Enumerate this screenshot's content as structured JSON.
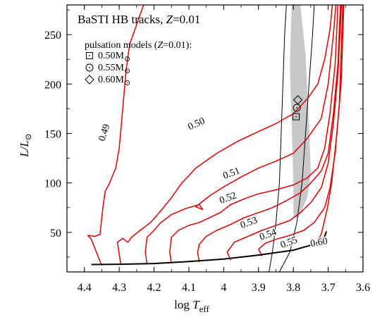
{
  "chart_data": {
    "type": "line",
    "title_main": "BaSTI HB tracks, ",
    "title_z": "Z",
    "title_tail": "=0.01",
    "xlabel_main": "log ",
    "xlabel_sym": "T",
    "xlabel_sub": "eff",
    "ylabel_main": "L/L",
    "ylabel_sub": "⊙",
    "xlim": [
      4.45,
      3.6
    ],
    "ylim": [
      10,
      280
    ],
    "xticks": [
      {
        "v": 4.4,
        "label": "4.4"
      },
      {
        "v": 4.3,
        "label": "4.3"
      },
      {
        "v": 4.2,
        "label": "4.2"
      },
      {
        "v": 4.1,
        "label": "4.1"
      },
      {
        "v": 4.0,
        "label": "4"
      },
      {
        "v": 3.9,
        "label": "3.9"
      },
      {
        "v": 3.8,
        "label": "3.8"
      },
      {
        "v": 3.7,
        "label": "3.7"
      },
      {
        "v": 3.6,
        "label": "3.6"
      }
    ],
    "yticks": [
      {
        "v": 50,
        "label": "50"
      },
      {
        "v": 100,
        "label": "100"
      },
      {
        "v": 150,
        "label": "150"
      },
      {
        "v": 200,
        "label": "200"
      },
      {
        "v": 250,
        "label": "250"
      }
    ],
    "legend": {
      "heading_main": "pulsation models (",
      "heading_z": "Z",
      "heading_tail": "=0.01):",
      "items": [
        {
          "marker": "square",
          "label": "0.50M",
          "sub": "⊙"
        },
        {
          "marker": "circle",
          "label": "0.55M",
          "sub": "⊙"
        },
        {
          "marker": "diamond",
          "label": "0.60M",
          "sub": "⊙"
        }
      ]
    },
    "colors": {
      "tracks": "#e00000",
      "zahb": "#000000",
      "instability_strip": "#c8c8c8",
      "edges": "#000000"
    },
    "instability_strip": [
      [
        3.805,
        280
      ],
      [
        3.78,
        280
      ],
      [
        3.765,
        230
      ],
      [
        3.755,
        160
      ],
      [
        3.75,
        110
      ],
      [
        3.76,
        85
      ],
      [
        3.785,
        65
      ],
      [
        3.8,
        65
      ],
      [
        3.8,
        100
      ],
      [
        3.805,
        160
      ],
      [
        3.81,
        220
      ]
    ],
    "blue_edge": [
      [
        3.87,
        10
      ],
      [
        3.86,
        30
      ],
      [
        3.85,
        60
      ],
      [
        3.84,
        100
      ],
      [
        3.835,
        150
      ],
      [
        3.83,
        200
      ],
      [
        3.825,
        250
      ],
      [
        3.82,
        280
      ]
    ],
    "red_edge": [
      [
        3.84,
        10
      ],
      [
        3.81,
        30
      ],
      [
        3.79,
        60
      ],
      [
        3.775,
        100
      ],
      [
        3.765,
        150
      ],
      [
        3.755,
        200
      ],
      [
        3.745,
        250
      ],
      [
        3.74,
        280
      ]
    ],
    "zahb": [
      [
        4.38,
        17.5
      ],
      [
        4.3,
        17.8
      ],
      [
        4.2,
        18.5
      ],
      [
        4.1,
        20.5
      ],
      [
        4.0,
        23
      ],
      [
        3.9,
        27
      ],
      [
        3.8,
        32
      ],
      [
        3.75,
        37
      ],
      [
        3.72,
        41
      ],
      [
        3.71,
        46
      ],
      [
        3.705,
        51
      ]
    ],
    "tracks": [
      {
        "label": "0.49",
        "label_at": [
          4.335,
          150
        ],
        "label_rot": -72,
        "points": [
          [
            4.35,
            16.5
          ],
          [
            4.36,
            25
          ],
          [
            4.38,
            43
          ],
          [
            4.39,
            47
          ],
          [
            4.37,
            46
          ],
          [
            4.355,
            48
          ],
          [
            4.35,
            65
          ],
          [
            4.345,
            80
          ],
          [
            4.34,
            92
          ],
          [
            4.33,
            98
          ],
          [
            4.31,
            115
          ],
          [
            4.3,
            135
          ],
          [
            4.29,
            175
          ],
          [
            4.28,
            215
          ],
          [
            4.27,
            240
          ],
          [
            4.25,
            260
          ],
          [
            4.23,
            280
          ]
        ]
      },
      {
        "label": "0.50",
        "label_at": [
          4.075,
          157
        ],
        "label_rot": -24,
        "points": [
          [
            4.295,
            17
          ],
          [
            4.3,
            28
          ],
          [
            4.305,
            40
          ],
          [
            4.29,
            44
          ],
          [
            4.275,
            40
          ],
          [
            4.265,
            45
          ],
          [
            4.24,
            52
          ],
          [
            4.21,
            60
          ],
          [
            4.18,
            72
          ],
          [
            4.15,
            85
          ],
          [
            4.12,
            100
          ],
          [
            4.08,
            115
          ],
          [
            4.02,
            130
          ],
          [
            3.96,
            142
          ],
          [
            3.9,
            152
          ],
          [
            3.85,
            160
          ],
          [
            3.8,
            170
          ],
          [
            3.76,
            185
          ],
          [
            3.73,
            200
          ],
          [
            3.71,
            225
          ],
          [
            3.695,
            255
          ],
          [
            3.688,
            280
          ]
        ]
      },
      {
        "label": "0.51",
        "label_at": [
          3.975,
          107
        ],
        "label_rot": -20,
        "points": [
          [
            4.22,
            17.5
          ],
          [
            4.225,
            30
          ],
          [
            4.22,
            45
          ],
          [
            4.2,
            52
          ],
          [
            4.18,
            60
          ],
          [
            4.15,
            68
          ],
          [
            4.11,
            74
          ],
          [
            4.07,
            78
          ],
          [
            4.06,
            73
          ],
          [
            4.08,
            76
          ],
          [
            4.04,
            87
          ],
          [
            4.0,
            96
          ],
          [
            3.95,
            106
          ],
          [
            3.9,
            115
          ],
          [
            3.85,
            122
          ],
          [
            3.8,
            130
          ],
          [
            3.76,
            145
          ],
          [
            3.72,
            165
          ],
          [
            3.7,
            200
          ],
          [
            3.685,
            250
          ],
          [
            3.678,
            280
          ]
        ]
      },
      {
        "label": "0.52",
        "label_at": [
          3.985,
          82
        ],
        "label_rot": -20,
        "points": [
          [
            4.15,
            18.5
          ],
          [
            4.155,
            30
          ],
          [
            4.15,
            45
          ],
          [
            4.13,
            52
          ],
          [
            4.1,
            57
          ],
          [
            4.07,
            60
          ],
          [
            4.04,
            65
          ],
          [
            4.01,
            70
          ],
          [
            3.98,
            78
          ],
          [
            3.94,
            84
          ],
          [
            3.9,
            89
          ],
          [
            3.85,
            93
          ],
          [
            3.8,
            98
          ],
          [
            3.76,
            105
          ],
          [
            3.73,
            115
          ],
          [
            3.71,
            135
          ],
          [
            3.695,
            170
          ],
          [
            3.68,
            220
          ],
          [
            3.672,
            280
          ]
        ]
      },
      {
        "label": "0.53",
        "label_at": [
          3.925,
          57
        ],
        "label_rot": -20,
        "points": [
          [
            4.07,
            20
          ],
          [
            4.075,
            30
          ],
          [
            4.07,
            38
          ],
          [
            4.05,
            46
          ],
          [
            4.02,
            52
          ],
          [
            3.98,
            58
          ],
          [
            3.94,
            65
          ],
          [
            3.9,
            70
          ],
          [
            3.86,
            75
          ],
          [
            3.82,
            82
          ],
          [
            3.78,
            90
          ],
          [
            3.75,
            100
          ],
          [
            3.72,
            112
          ],
          [
            3.7,
            130
          ],
          [
            3.685,
            170
          ],
          [
            3.672,
            220
          ],
          [
            3.665,
            280
          ]
        ]
      },
      {
        "label": "0.54",
        "label_at": [
          3.87,
          45
        ],
        "label_rot": -20,
        "points": [
          [
            3.98,
            22
          ],
          [
            3.99,
            30
          ],
          [
            3.97,
            40
          ],
          [
            3.93,
            46
          ],
          [
            3.89,
            52
          ],
          [
            3.85,
            57
          ],
          [
            3.81,
            62
          ],
          [
            3.78,
            70
          ],
          [
            3.75,
            80
          ],
          [
            3.72,
            95
          ],
          [
            3.7,
            120
          ],
          [
            3.685,
            160
          ],
          [
            3.672,
            210
          ],
          [
            3.662,
            280
          ]
        ]
      },
      {
        "label": "0.55",
        "label_at": [
          3.81,
          37
        ],
        "label_rot": -20,
        "points": [
          [
            3.89,
            26
          ],
          [
            3.9,
            33
          ],
          [
            3.88,
            39
          ],
          [
            3.85,
            43
          ],
          [
            3.81,
            47
          ],
          [
            3.77,
            52
          ],
          [
            3.74,
            60
          ],
          [
            3.71,
            75
          ],
          [
            3.695,
            95
          ],
          [
            3.68,
            130
          ],
          [
            3.668,
            180
          ],
          [
            3.658,
            280
          ]
        ]
      },
      {
        "label": "0.60",
        "label_at": [
          3.725,
          37
        ],
        "label_rot": -10,
        "points": [
          [
            3.73,
            38
          ],
          [
            3.725,
            45
          ],
          [
            3.72,
            48
          ],
          [
            3.712,
            60
          ],
          [
            3.702,
            75
          ],
          [
            3.69,
            100
          ],
          [
            3.675,
            150
          ],
          [
            3.663,
            200
          ],
          [
            3.655,
            280
          ]
        ]
      }
    ],
    "pulsation_points": [
      {
        "marker": "square",
        "x": 3.792,
        "y": 167
      },
      {
        "marker": "circle",
        "x": 3.79,
        "y": 176
      },
      {
        "marker": "diamond",
        "x": 3.787,
        "y": 184
      }
    ]
  }
}
